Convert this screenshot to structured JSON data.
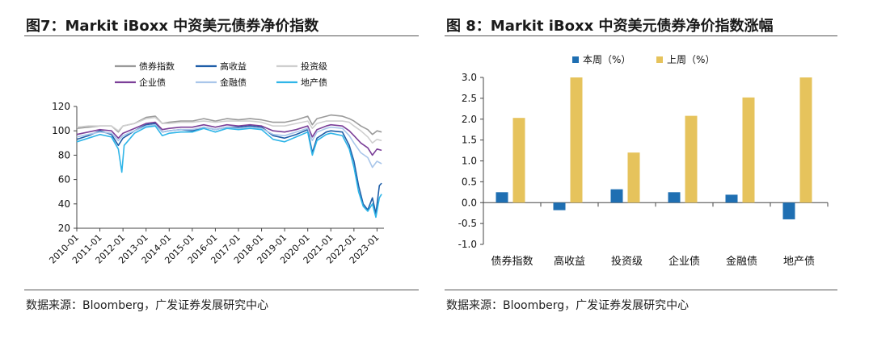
{
  "left": {
    "title": "图7：Markit iBoxx  中资美元债券净价指数",
    "source": "数据来源：Bloomberg，广发证券发展研究中心"
  },
  "right": {
    "title": "图 8：Markit iBoxx  中资美元债券净价指数涨幅",
    "source": "数据来源：Bloomberg，广发证券发展研究中心"
  },
  "chart_data": [
    {
      "type": "line",
      "title": "Markit iBoxx 中资美元债券净价指数",
      "xlabel": "",
      "ylabel": "",
      "x_ticks": [
        "2010-01",
        "2011-01",
        "2012-01",
        "2013-01",
        "2014-01",
        "2015-01",
        "2016-01",
        "2017-01",
        "2018-01",
        "2019-01",
        "2020-01",
        "2021-01",
        "2022-01",
        "2023-01"
      ],
      "xlim": [
        2010.0,
        2023.3
      ],
      "ylim": [
        20,
        120
      ],
      "y_ticks": [
        20,
        40,
        60,
        80,
        100,
        120
      ],
      "legend_position": "top",
      "series": [
        {
          "name": "债券指数",
          "color": "#9a9a9a",
          "x": [
            2010.0,
            2010.5,
            2011.0,
            2011.5,
            2011.8,
            2012.0,
            2012.5,
            2013.0,
            2013.4,
            2013.7,
            2014.0,
            2014.5,
            2015.0,
            2015.5,
            2016.0,
            2016.5,
            2017.0,
            2017.5,
            2018.0,
            2018.5,
            2019.0,
            2019.5,
            2020.0,
            2020.2,
            2020.4,
            2020.8,
            2021.0,
            2021.5,
            2021.8,
            2022.0,
            2022.3,
            2022.6,
            2022.8,
            2023.0,
            2023.2
          ],
          "y": [
            102,
            103,
            104,
            104,
            99,
            104,
            106,
            111,
            112,
            106,
            107,
            108,
            108,
            110,
            108,
            110,
            109,
            110,
            109,
            107,
            107,
            109,
            112,
            105,
            110,
            112,
            113,
            112,
            110,
            108,
            104,
            101,
            97,
            100,
            99
          ]
        },
        {
          "name": "高收益",
          "color": "#1f5ea8",
          "x": [
            2010.0,
            2010.5,
            2011.0,
            2011.5,
            2011.8,
            2012.0,
            2012.5,
            2013.0,
            2013.4,
            2013.7,
            2014.0,
            2014.5,
            2015.0,
            2015.5,
            2016.0,
            2016.5,
            2017.0,
            2017.5,
            2018.0,
            2018.5,
            2019.0,
            2019.5,
            2020.0,
            2020.2,
            2020.4,
            2020.8,
            2021.0,
            2021.5,
            2021.8,
            2022.0,
            2022.2,
            2022.4,
            2022.6,
            2022.8,
            2022.95,
            2023.1,
            2023.2
          ],
          "y": [
            93,
            96,
            100,
            97,
            88,
            94,
            100,
            105,
            106,
            99,
            100,
            101,
            100,
            103,
            101,
            103,
            103,
            104,
            103,
            96,
            94,
            97,
            101,
            82,
            94,
            99,
            100,
            99,
            88,
            75,
            55,
            40,
            35,
            45,
            32,
            55,
            57
          ]
        },
        {
          "name": "投资级",
          "color": "#cfcfcf",
          "x": [
            2010.0,
            2010.5,
            2011.0,
            2011.5,
            2011.8,
            2012.0,
            2012.5,
            2013.0,
            2013.4,
            2013.7,
            2014.0,
            2014.5,
            2015.0,
            2015.5,
            2016.0,
            2016.5,
            2017.0,
            2017.5,
            2018.0,
            2018.5,
            2019.0,
            2019.5,
            2020.0,
            2020.2,
            2020.4,
            2020.8,
            2021.0,
            2021.5,
            2021.8,
            2022.0,
            2022.3,
            2022.6,
            2022.8,
            2023.0,
            2023.2
          ],
          "y": [
            103,
            104,
            104,
            104,
            100,
            104,
            106,
            110,
            111,
            106,
            106,
            107,
            107,
            108,
            107,
            108,
            108,
            108,
            107,
            104,
            104,
            106,
            108,
            102,
            106,
            108,
            108,
            108,
            107,
            104,
            100,
            95,
            90,
            93,
            92
          ]
        },
        {
          "name": "企业债",
          "color": "#7b3f98",
          "x": [
            2010.0,
            2010.5,
            2011.0,
            2011.5,
            2011.8,
            2012.0,
            2012.5,
            2013.0,
            2013.4,
            2013.7,
            2014.0,
            2014.5,
            2015.0,
            2015.5,
            2016.0,
            2016.5,
            2017.0,
            2017.5,
            2018.0,
            2018.5,
            2019.0,
            2019.5,
            2020.0,
            2020.2,
            2020.4,
            2020.8,
            2021.0,
            2021.5,
            2021.8,
            2022.0,
            2022.3,
            2022.6,
            2022.8,
            2023.0,
            2023.2
          ],
          "y": [
            97,
            99,
            101,
            100,
            94,
            98,
            102,
            106,
            107,
            101,
            102,
            103,
            103,
            105,
            103,
            105,
            104,
            105,
            104,
            100,
            99,
            101,
            104,
            95,
            101,
            104,
            105,
            104,
            100,
            96,
            90,
            86,
            80,
            85,
            84
          ]
        },
        {
          "name": "金融债",
          "color": "#a9c6ea",
          "x": [
            2010.0,
            2010.5,
            2011.0,
            2011.5,
            2011.8,
            2012.0,
            2012.5,
            2013.0,
            2013.4,
            2013.7,
            2014.0,
            2014.5,
            2015.0,
            2015.5,
            2016.0,
            2016.5,
            2017.0,
            2017.5,
            2018.0,
            2018.5,
            2019.0,
            2019.5,
            2020.0,
            2020.2,
            2020.4,
            2020.8,
            2021.0,
            2021.5,
            2021.8,
            2022.0,
            2022.3,
            2022.6,
            2022.8,
            2023.0,
            2023.2
          ],
          "y": [
            95,
            97,
            99,
            98,
            92,
            96,
            100,
            104,
            105,
            99,
            100,
            101,
            101,
            103,
            101,
            103,
            102,
            103,
            102,
            97,
            96,
            99,
            102,
            92,
            99,
            102,
            103,
            102,
            96,
            90,
            82,
            78,
            70,
            75,
            73
          ]
        },
        {
          "name": "地产债",
          "color": "#2fb5e8",
          "x": [
            2010.0,
            2010.5,
            2011.0,
            2011.5,
            2011.8,
            2011.95,
            2012.05,
            2012.5,
            2013.0,
            2013.4,
            2013.7,
            2014.0,
            2014.5,
            2015.0,
            2015.5,
            2016.0,
            2016.5,
            2017.0,
            2017.5,
            2018.0,
            2018.5,
            2019.0,
            2019.5,
            2020.0,
            2020.2,
            2020.4,
            2020.8,
            2021.0,
            2021.5,
            2021.8,
            2022.0,
            2022.2,
            2022.4,
            2022.6,
            2022.8,
            2022.95,
            2023.1,
            2023.2
          ],
          "y": [
            91,
            94,
            97,
            95,
            85,
            66,
            88,
            98,
            103,
            104,
            96,
            98,
            99,
            99,
            102,
            99,
            102,
            101,
            102,
            101,
            93,
            91,
            95,
            99,
            80,
            92,
            97,
            98,
            96,
            85,
            70,
            50,
            38,
            34,
            40,
            29,
            45,
            48
          ]
        }
      ]
    },
    {
      "type": "bar",
      "title": "Markit iBoxx 中资美元债券净价指数涨幅",
      "categories": [
        "债券指数",
        "高收益",
        "投资级",
        "企业债",
        "金融债",
        "地产债"
      ],
      "ylim": [
        -1.0,
        3.0
      ],
      "y_ticks": [
        "3.0",
        "2.5",
        "2.0",
        "1.5",
        "1.0",
        "0.5",
        "0.0",
        "-0.5",
        "-1.0"
      ],
      "legend_position": "top",
      "series": [
        {
          "name": "本周（%）",
          "color": "#1f6fb2",
          "values": [
            0.25,
            -0.18,
            0.32,
            0.25,
            0.19,
            -0.4
          ]
        },
        {
          "name": "上周（%）",
          "color": "#e6c35c",
          "values": [
            2.03,
            3.0,
            1.2,
            2.08,
            2.52,
            3.0
          ]
        }
      ]
    }
  ]
}
